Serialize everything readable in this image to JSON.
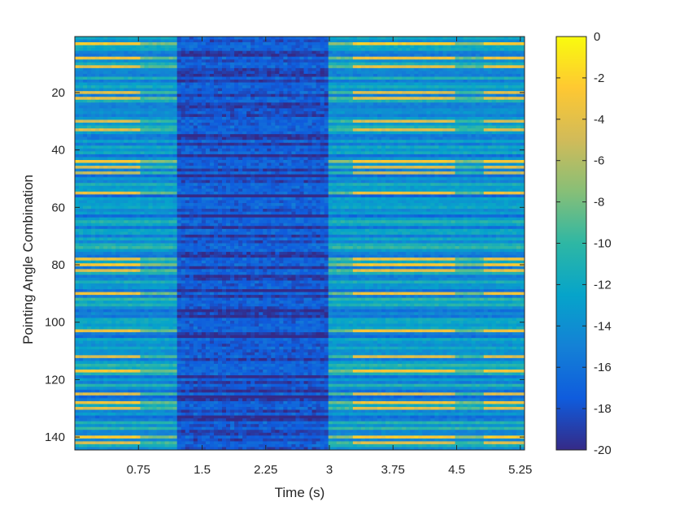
{
  "chart_data": {
    "type": "heatmap",
    "title": "",
    "xlabel": "Time (s)",
    "ylabel": "Pointing Angle Combination",
    "xlim": [
      0,
      5.3
    ],
    "ylim": [
      144,
      1
    ],
    "y_direction": "reversed",
    "xticks": [
      0.75,
      1.5,
      2.25,
      3,
      3.75,
      4.5,
      5.25
    ],
    "xtick_labels": [
      "0.75",
      "1.5",
      "2.25",
      "3",
      "3.75",
      "4.5",
      "5.25"
    ],
    "yticks": [
      20,
      40,
      60,
      80,
      100,
      120,
      140
    ],
    "ytick_labels": [
      "20",
      "40",
      "60",
      "80",
      "100",
      "120",
      "140"
    ],
    "colorbar": {
      "colormap": "parula",
      "clim": [
        -20,
        0
      ],
      "ticks": [
        0,
        -2,
        -4,
        -6,
        -8,
        -10,
        -12,
        -14,
        -16,
        -18,
        -20
      ],
      "tick_labels": [
        "0",
        "-2",
        "-4",
        "-6",
        "-8",
        "-10",
        "-12",
        "-14",
        "-16",
        "-18",
        "-20"
      ],
      "colors": [
        "#352a87",
        "#0f5cdd",
        "#1481d6",
        "#06a4ca",
        "#2eb7a4",
        "#87bf77",
        "#d1bb59",
        "#fec832",
        "#f9fb0e"
      ]
    },
    "grid": false,
    "rows": 144,
    "time_segments": [
      {
        "t_start": 0.0,
        "t_end": 0.75,
        "description": "high band activity (~ -4 dB) on many rows"
      },
      {
        "t_start": 0.75,
        "t_end": 1.2,
        "description": "transition"
      },
      {
        "t_start": 1.2,
        "t_end": 3.0,
        "description": "mostly low (~ -16 to -18 dB)"
      },
      {
        "t_start": 3.0,
        "t_end": 3.3,
        "description": "transition"
      },
      {
        "t_start": 3.3,
        "t_end": 4.5,
        "description": "high band activity (~ -4 dB)"
      },
      {
        "t_start": 4.5,
        "t_end": 5.3,
        "description": "mixed"
      }
    ],
    "band_levels_db": {
      "bright_rows": [
        3,
        8,
        11,
        20,
        22,
        30,
        33,
        44,
        46,
        48,
        55,
        78,
        80,
        82,
        90,
        103,
        112,
        117,
        125,
        128,
        130,
        140,
        142
      ],
      "bright_level": -4,
      "dark_level": -17,
      "background_level": -13
    }
  }
}
